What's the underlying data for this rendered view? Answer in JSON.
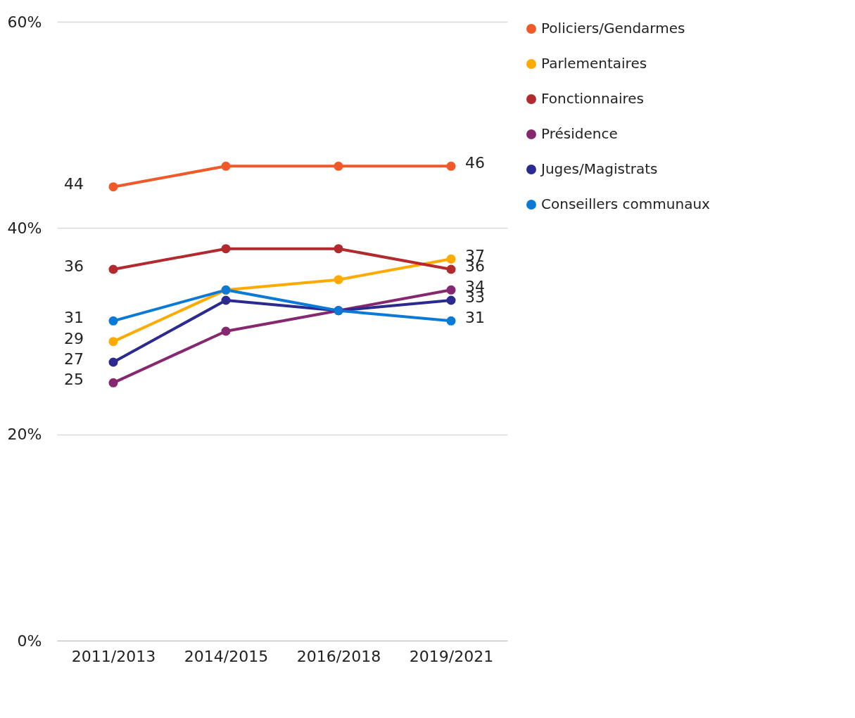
{
  "chart_data": {
    "type": "line",
    "categories": [
      "2011/2013",
      "2014/2015",
      "2016/2018",
      "2019/2021"
    ],
    "ylim": [
      0,
      60
    ],
    "yticks": [
      {
        "value": 0,
        "label": "0%"
      },
      {
        "value": 20,
        "label": "20%"
      },
      {
        "value": 40,
        "label": "40%"
      },
      {
        "value": 60,
        "label": "60%"
      }
    ],
    "grid": "y",
    "legend": "right",
    "marker": "circle",
    "line_style": "solid",
    "series": [
      {
        "name": "Policiers/Gendarmes",
        "color": "#f05a28",
        "values": [
          44,
          46,
          46,
          46
        ],
        "value_labels": [
          "44",
          null,
          null,
          "46"
        ]
      },
      {
        "name": "Parlementaires",
        "color": "#ffaa00",
        "values": [
          29,
          34,
          35,
          37
        ],
        "value_labels": [
          "29",
          null,
          null,
          "37"
        ]
      },
      {
        "name": "Fonctionnaires",
        "color": "#b22a2e",
        "values": [
          36,
          38,
          38,
          36
        ],
        "value_labels": [
          "36",
          null,
          null,
          "36"
        ]
      },
      {
        "name": "Présidence",
        "color": "#86286f",
        "values": [
          25,
          30,
          32,
          34
        ],
        "value_labels": [
          "25",
          null,
          null,
          "34"
        ]
      },
      {
        "name": "Juges/Magistrats",
        "color": "#2a2a8f",
        "values": [
          27,
          33,
          32,
          33
        ],
        "value_labels": [
          "27",
          null,
          null,
          "33"
        ]
      },
      {
        "name": "Conseillers communaux",
        "color": "#0a7ad6",
        "values": [
          31,
          34,
          32,
          31
        ],
        "value_labels": [
          "31",
          null,
          null,
          "31"
        ]
      }
    ]
  }
}
